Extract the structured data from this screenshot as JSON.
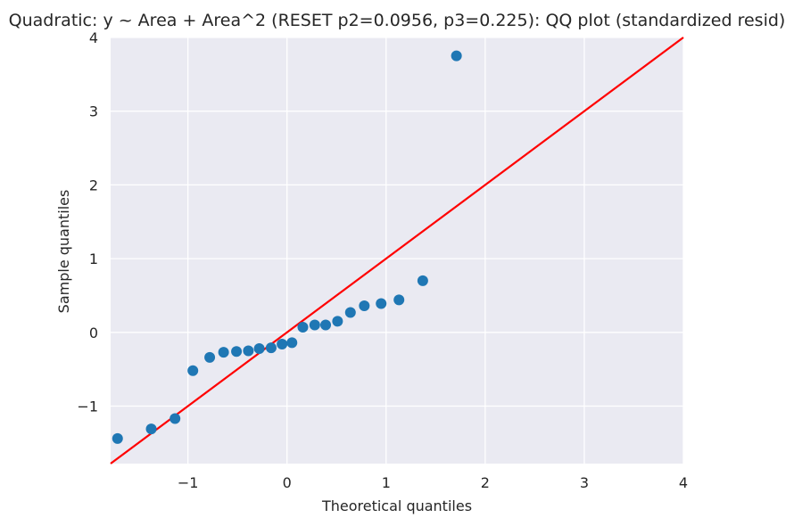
{
  "chart_data": {
    "type": "scatter",
    "title": "Quadratic: y ~ Area + Area^2 (RESET p2=0.0956, p3=0.225): QQ plot (standardized resid)",
    "xlabel": "Theoretical quantiles",
    "ylabel": "Sample quantiles",
    "xlim": [
      -1.78,
      4.0
    ],
    "ylim": [
      -1.78,
      4.0
    ],
    "xticks": [
      -1,
      0,
      1,
      2,
      3,
      4
    ],
    "yticks": [
      -1,
      0,
      1,
      2,
      3,
      4
    ],
    "xtick_labels": [
      "−1",
      "0",
      "1",
      "2",
      "3",
      "4"
    ],
    "ytick_labels": [
      "−1",
      "0",
      "1",
      "2",
      "3",
      "4"
    ],
    "grid": true,
    "points": {
      "x": [
        -1.71,
        -1.37,
        -1.13,
        -0.95,
        -0.78,
        -0.64,
        -0.51,
        -0.39,
        -0.28,
        -0.16,
        -0.05,
        0.05,
        0.16,
        0.28,
        0.39,
        0.51,
        0.64,
        0.78,
        0.95,
        1.13,
        1.37,
        1.71
      ],
      "y": [
        -1.44,
        -1.31,
        -1.17,
        -0.52,
        -0.34,
        -0.27,
        -0.26,
        -0.25,
        -0.22,
        -0.21,
        -0.16,
        -0.14,
        0.07,
        0.1,
        0.1,
        0.15,
        0.27,
        0.36,
        0.39,
        0.44,
        0.7,
        3.75
      ]
    },
    "reference_line": {
      "slope": 1,
      "intercept": 0
    },
    "colors": {
      "points": "#1f77b4",
      "line": "#ff0000",
      "plot_background": "#eaeaf2",
      "grid": "#ffffff",
      "text": "#262626"
    }
  }
}
